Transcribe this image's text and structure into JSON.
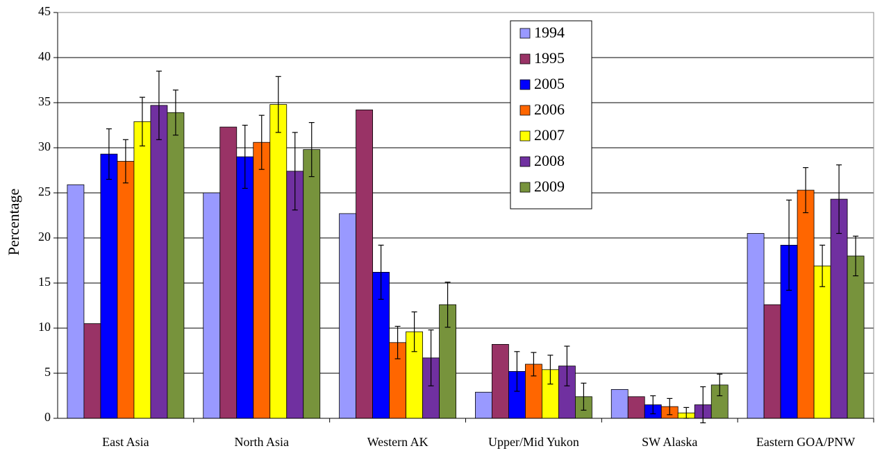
{
  "chart_data": {
    "type": "bar",
    "y_label": "Percentage",
    "categories": [
      "East Asia",
      "North Asia",
      "Western AK",
      "Upper/Mid Yukon",
      "SW Alaska",
      "Eastern GOA/PNW"
    ],
    "series": [
      {
        "name": "1994",
        "color": "#9999ff",
        "values": [
          25.9,
          25.0,
          22.7,
          2.9,
          3.2,
          20.5
        ]
      },
      {
        "name": "1995",
        "color": "#993366",
        "values": [
          10.5,
          32.3,
          34.2,
          8.2,
          2.4,
          12.6
        ]
      },
      {
        "name": "2005",
        "color": "#0000ff",
        "values": [
          29.3,
          29.0,
          16.2,
          5.2,
          1.5,
          19.2
        ],
        "errors": [
          2.8,
          3.5,
          3.0,
          2.2,
          1.0,
          5.0
        ]
      },
      {
        "name": "2006",
        "color": "#ff6600",
        "values": [
          28.5,
          30.6,
          8.4,
          6.0,
          1.3,
          25.3
        ],
        "errors": [
          2.4,
          3.0,
          1.8,
          1.3,
          0.9,
          2.5
        ]
      },
      {
        "name": "2007",
        "color": "#ffff00",
        "values": [
          32.9,
          34.8,
          9.6,
          5.4,
          0.6,
          16.9
        ],
        "errors": [
          2.7,
          3.1,
          2.2,
          1.6,
          0.6,
          2.3
        ]
      },
      {
        "name": "2008",
        "color": "#7030a0",
        "values": [
          34.7,
          27.4,
          6.7,
          5.8,
          1.5,
          24.3
        ],
        "errors": [
          3.8,
          4.3,
          3.1,
          2.2,
          2.0,
          3.8
        ]
      },
      {
        "name": "2009",
        "color": "#77933c",
        "values": [
          33.9,
          29.8,
          12.6,
          2.4,
          3.7,
          18.0
        ],
        "errors": [
          2.5,
          3.0,
          2.5,
          1.5,
          1.2,
          2.2
        ]
      }
    ],
    "ylim": [
      0,
      45
    ],
    "yticks": [
      0,
      5,
      10,
      15,
      20,
      25,
      30,
      35,
      40,
      45
    ],
    "grid": true,
    "legend": "top-center"
  }
}
